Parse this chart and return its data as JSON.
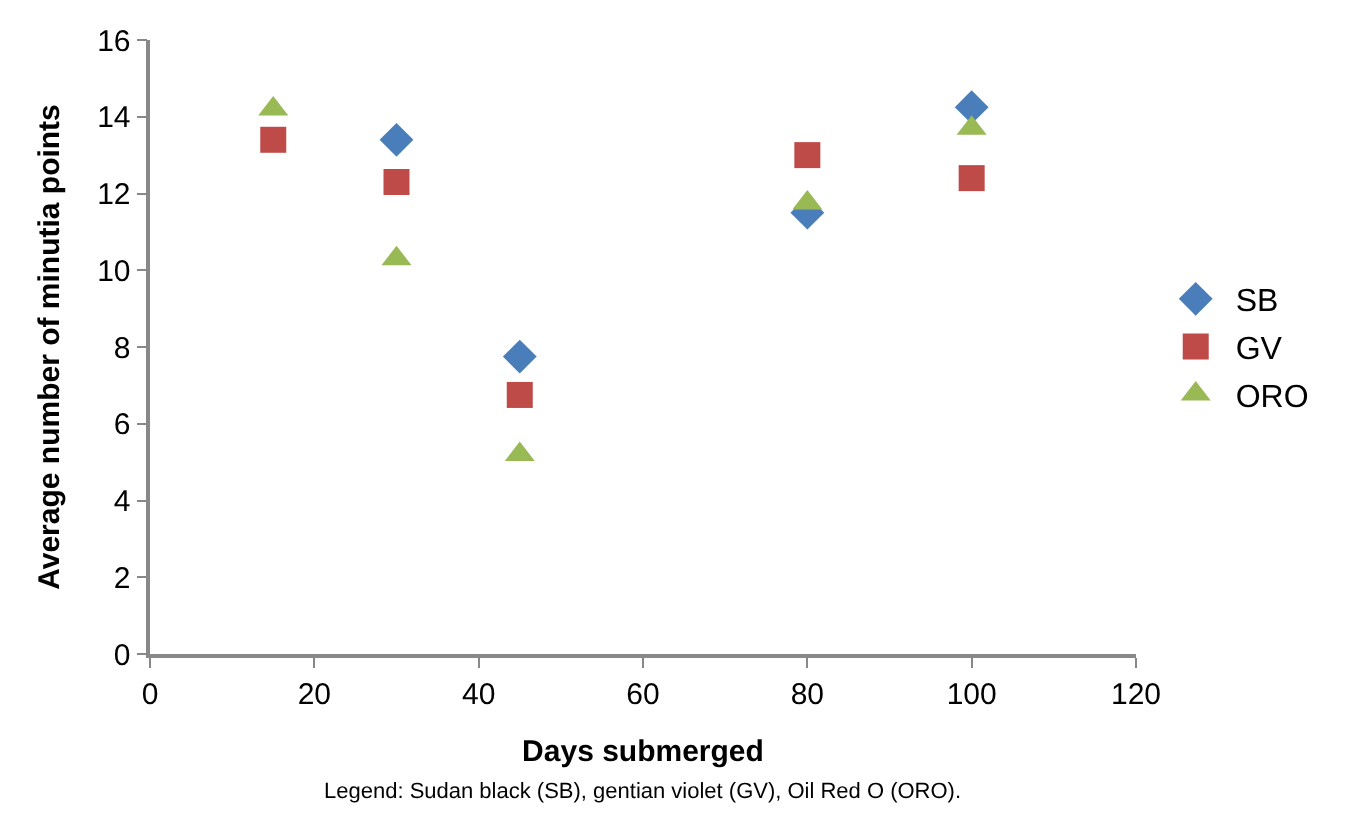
{
  "chart_data": {
    "type": "scatter",
    "xlabel": "Days submerged",
    "ylabel": "Average number of minutia points",
    "x": [
      15,
      30,
      45,
      80,
      100
    ],
    "series": [
      {
        "name": "SB",
        "color": "#4a7ebb",
        "marker": "diamond",
        "values": [
          null,
          13.4,
          7.75,
          11.5,
          14.25
        ]
      },
      {
        "name": "GV",
        "color": "#be4b48",
        "marker": "square",
        "values": [
          13.4,
          12.3,
          6.75,
          13.0,
          12.4
        ]
      },
      {
        "name": "ORO",
        "color": "#98b954",
        "marker": "triangle",
        "values": [
          14.2,
          10.3,
          5.2,
          11.75,
          13.7
        ]
      }
    ],
    "xlim": [
      0,
      120
    ],
    "xticks": [
      0,
      20,
      40,
      60,
      80,
      100,
      120
    ],
    "ylim": [
      0,
      16
    ],
    "yticks": [
      0,
      2,
      4,
      6,
      8,
      10,
      12,
      14,
      16
    ],
    "legend": "right",
    "annotations": [
      "Legend: Sudan black (SB), gentian violet (GV), Oil Red O (ORO)."
    ]
  }
}
